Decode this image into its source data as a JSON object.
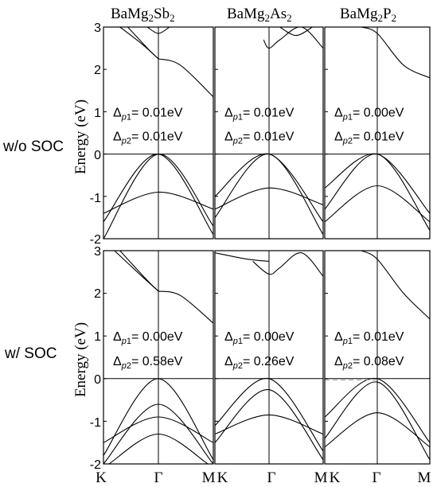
{
  "figure": {
    "columns": [
      {
        "formula_parts": [
          "BaMg",
          "2",
          "Sb",
          "2"
        ]
      },
      {
        "formula_parts": [
          "BaMg",
          "2",
          "As",
          "2"
        ]
      },
      {
        "formula_parts": [
          "BaMg",
          "2",
          "P",
          "2"
        ]
      }
    ],
    "rows": [
      {
        "label": "w/o SOC"
      },
      {
        "label": "w/ SOC"
      }
    ],
    "ylabel": "Energy (eV)",
    "yticks": [
      "3",
      "2",
      "1",
      "0",
      "-1",
      "-2"
    ],
    "xticks": [
      "K",
      "Γ",
      "M"
    ],
    "gap_symbol": "Δ",
    "gap_sub": "p",
    "gap_labels": [
      [
        "1",
        "2"
      ]
    ],
    "gaps": [
      [
        {
          "p1": "= 0.01eV",
          "p2": "= 0.01eV"
        },
        {
          "p1": "= 0.01eV",
          "p2": "= 0.01eV"
        },
        {
          "p1": "= 0.00eV",
          "p2": "= 0.01eV"
        }
      ],
      [
        {
          "p1": "= 0.00eV",
          "p2": "= 0.58eV"
        },
        {
          "p1": "= 0.00eV",
          "p2": "= 0.26eV"
        },
        {
          "p1": "= 0.01eV",
          "p2": "= 0.08eV"
        }
      ]
    ]
  },
  "chart_data": {
    "type": "line",
    "description_units": "Energy (eV) vs k-path K-Γ-M",
    "ylim": [
      -2,
      3
    ],
    "xpath": [
      "K",
      "Γ",
      "M"
    ],
    "panels": [
      {
        "row": "w/o SOC",
        "column": "BaMg2Sb2",
        "conduction": [
          {
            "k": [
              0.15,
              0.35,
              0.5
            ],
            "E": [
              3.0,
              2.6,
              2.25
            ]
          },
          {
            "k": [
              0.22,
              0.4,
              0.5
            ],
            "E": [
              3.0,
              2.5,
              2.25
            ]
          },
          {
            "k": [
              0.5,
              0.7,
              1.0
            ],
            "E": [
              2.25,
              2.1,
              1.35
            ]
          },
          {
            "k": [
              0.4,
              0.5,
              0.6
            ],
            "E": [
              3.0,
              2.85,
              3.0
            ]
          }
        ],
        "valence": [
          {
            "k": [
              0.0,
              0.5,
              1.0
            ],
            "E": [
              -1.6,
              0.0,
              -1.9
            ]
          },
          {
            "k": [
              0.0,
              0.5,
              1.0
            ],
            "E": [
              -2.0,
              0.0,
              -1.7
            ]
          },
          {
            "k": [
              0.0,
              0.5,
              1.0
            ],
            "E": [
              -1.4,
              -0.9,
              -1.3
            ]
          }
        ]
      },
      {
        "row": "w/o SOC",
        "column": "BaMg2As2",
        "conduction": [
          {
            "k": [
              0.45,
              0.5,
              0.6,
              0.8,
              1.0
            ],
            "E": [
              2.7,
              2.5,
              2.7,
              3.0,
              2.5
            ]
          },
          {
            "k": [
              0.6,
              0.75,
              0.9
            ],
            "E": [
              3.0,
              2.8,
              3.0
            ]
          }
        ],
        "valence": [
          {
            "k": [
              0.0,
              0.5,
              1.0
            ],
            "E": [
              -1.0,
              0.0,
              -1.6
            ]
          },
          {
            "k": [
              0.0,
              0.5,
              1.0
            ],
            "E": [
              -1.5,
              0.0,
              -1.9
            ]
          },
          {
            "k": [
              0.0,
              0.5,
              1.0
            ],
            "E": [
              -1.3,
              -0.8,
              -1.2
            ]
          }
        ]
      },
      {
        "row": "w/o SOC",
        "column": "BaMg2P2",
        "conduction": [
          {
            "k": [
              0.35,
              0.5,
              0.75,
              1.0
            ],
            "E": [
              3.0,
              2.85,
              2.1,
              1.8
            ]
          }
        ],
        "valence": [
          {
            "k": [
              0.0,
              0.5,
              1.0
            ],
            "E": [
              -0.8,
              0.0,
              -1.4
            ]
          },
          {
            "k": [
              0.0,
              0.5,
              1.0
            ],
            "E": [
              -1.3,
              0.0,
              -1.8
            ]
          },
          {
            "k": [
              0.0,
              0.5,
              1.0
            ],
            "E": [
              -1.6,
              -0.75,
              -1.6
            ]
          }
        ]
      },
      {
        "row": "w/ SOC",
        "column": "BaMg2Sb2",
        "conduction": [
          {
            "k": [
              0.1,
              0.35,
              0.5
            ],
            "E": [
              3.0,
              2.4,
              2.05
            ]
          },
          {
            "k": [
              0.15,
              0.4,
              0.5
            ],
            "E": [
              3.0,
              2.3,
              2.05
            ]
          },
          {
            "k": [
              0.5,
              0.7,
              1.0
            ],
            "E": [
              2.05,
              1.95,
              1.3
            ]
          }
        ],
        "valence": [
          {
            "k": [
              0.0,
              0.5,
              1.0
            ],
            "E": [
              -1.8,
              0.0,
              -1.9
            ]
          },
          {
            "k": [
              0.0,
              0.5,
              1.0
            ],
            "E": [
              -2.0,
              -0.6,
              -2.0
            ]
          },
          {
            "k": [
              0.0,
              0.5,
              1.0
            ],
            "E": [
              -1.5,
              -0.9,
              -1.5
            ]
          },
          {
            "k": [
              0.05,
              0.5,
              0.95
            ],
            "E": [
              -2.0,
              -1.3,
              -2.0
            ]
          }
        ]
      },
      {
        "row": "w/ SOC",
        "column": "BaMg2As2",
        "conduction": [
          {
            "k": [
              0.35,
              0.5,
              0.6,
              0.8,
              1.0
            ],
            "E": [
              2.75,
              2.45,
              2.6,
              2.95,
              2.4
            ]
          },
          {
            "k": [
              0.0,
              0.3,
              0.5
            ],
            "E": [
              2.95,
              2.8,
              2.75
            ]
          }
        ],
        "valence": [
          {
            "k": [
              0.0,
              0.5,
              1.0
            ],
            "E": [
              -1.1,
              0.0,
              -1.7
            ]
          },
          {
            "k": [
              0.0,
              0.5,
              1.0
            ],
            "E": [
              -1.5,
              -0.26,
              -1.9
            ]
          },
          {
            "k": [
              0.0,
              0.5,
              1.0
            ],
            "E": [
              -1.3,
              -0.85,
              -1.3
            ]
          }
        ]
      },
      {
        "row": "w/ SOC",
        "column": "BaMg2P2",
        "conduction": [
          {
            "k": [
              0.35,
              0.5,
              0.75,
              1.0
            ],
            "E": [
              3.0,
              2.8,
              2.0,
              1.4
            ]
          }
        ],
        "valence": [
          {
            "k": [
              0.0,
              0.5,
              1.0
            ],
            "E": [
              -0.9,
              0.0,
              -1.5
            ]
          },
          {
            "k": [
              0.0,
              0.5,
              1.0
            ],
            "E": [
              -1.4,
              -0.08,
              -1.9
            ]
          },
          {
            "k": [
              0.0,
              0.5,
              1.0
            ],
            "E": [
              -1.6,
              -0.8,
              -1.6
            ]
          }
        ]
      }
    ]
  }
}
